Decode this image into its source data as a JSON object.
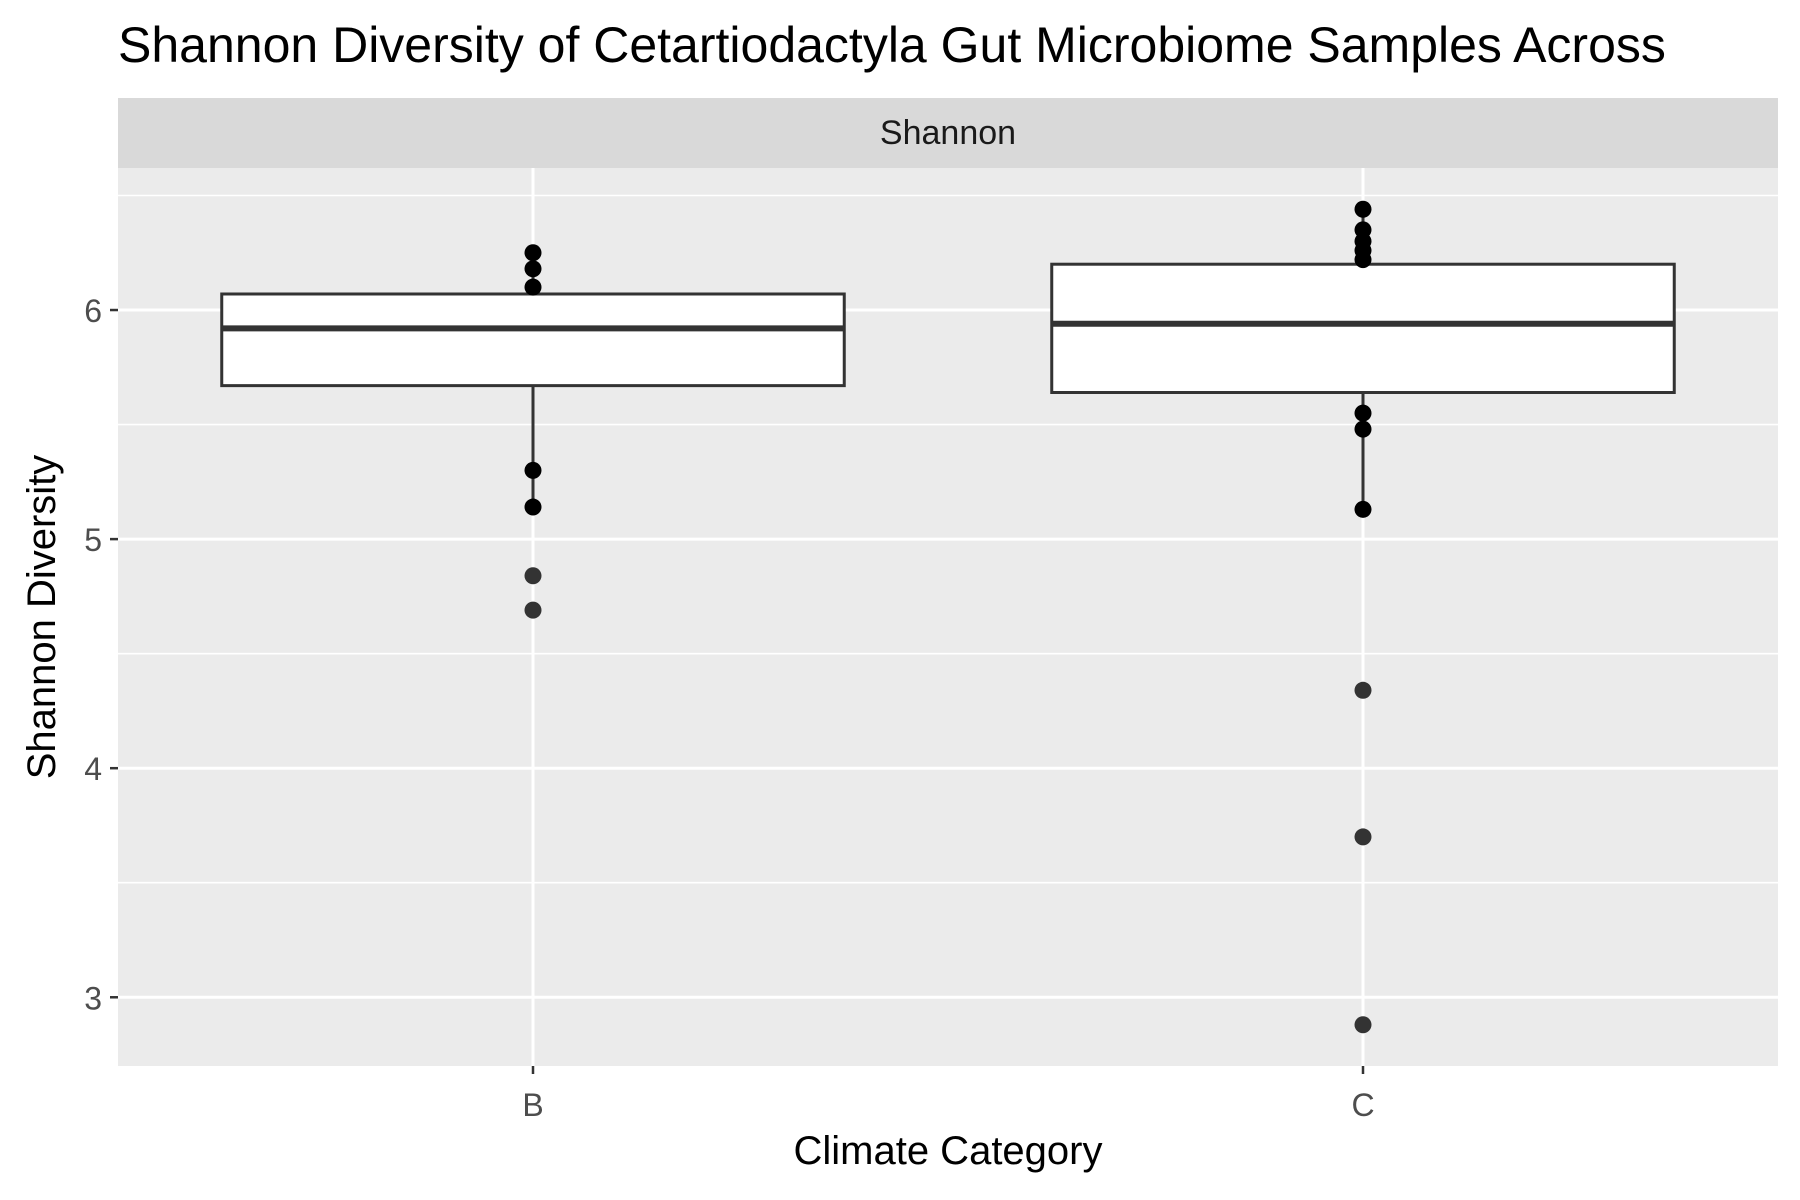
{
  "chart_data": {
    "type": "box",
    "title": "Shannon Diversity of Cetartiodactyla Gut Microbiome Samples Across",
    "facet_label": "Shannon",
    "xlabel": "Climate Category",
    "ylabel": "Shannon Diversity",
    "categories": [
      "B",
      "C"
    ],
    "ylim": [
      2.7,
      6.62
    ],
    "y_ticks": [
      3,
      4,
      5,
      6
    ],
    "grid": true,
    "boxes": [
      {
        "category": "B",
        "lower_whisker": 5.14,
        "q1": 5.67,
        "median": 5.92,
        "q3": 6.07,
        "upper_whisker": 6.25,
        "points": [
          6.25,
          6.18,
          6.1,
          5.3,
          5.14,
          4.84,
          4.69
        ]
      },
      {
        "category": "C",
        "lower_whisker": 5.13,
        "q1": 5.64,
        "median": 5.94,
        "q3": 6.2,
        "upper_whisker": 6.44,
        "points": [
          6.44,
          6.35,
          6.3,
          6.26,
          6.22,
          5.55,
          5.48,
          5.13,
          4.34,
          3.7,
          2.88
        ]
      }
    ],
    "colors": {
      "panel_bg": "#ebebeb",
      "strip_bg": "#d9d9d9",
      "grid": "#ffffff",
      "box_fill": "#ffffff",
      "box_line": "#333333",
      "point": "#000000",
      "outlier": "#333333"
    }
  }
}
